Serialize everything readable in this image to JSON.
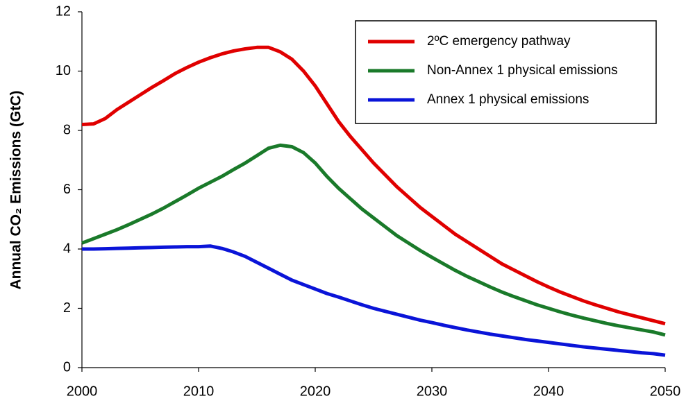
{
  "chart_data": {
    "type": "line",
    "ylabel": "Annual CO₂ Emissions (GtC)",
    "x": [
      2000,
      2001,
      2002,
      2003,
      2004,
      2005,
      2006,
      2007,
      2008,
      2009,
      2010,
      2011,
      2012,
      2013,
      2014,
      2015,
      2016,
      2017,
      2018,
      2019,
      2020,
      2021,
      2022,
      2023,
      2024,
      2025,
      2026,
      2027,
      2028,
      2029,
      2030,
      2031,
      2032,
      2033,
      2034,
      2035,
      2036,
      2037,
      2038,
      2039,
      2040,
      2041,
      2042,
      2043,
      2044,
      2045,
      2046,
      2047,
      2048,
      2049,
      2050
    ],
    "series": [
      {
        "name": "2ºC emergency pathway",
        "color": "#e00000",
        "values": [
          8.2,
          8.22,
          8.4,
          8.7,
          8.95,
          9.2,
          9.45,
          9.68,
          9.92,
          10.12,
          10.3,
          10.45,
          10.58,
          10.68,
          10.75,
          10.8,
          10.8,
          10.65,
          10.4,
          10.0,
          9.5,
          8.9,
          8.3,
          7.8,
          7.35,
          6.9,
          6.5,
          6.1,
          5.75,
          5.4,
          5.1,
          4.8,
          4.5,
          4.25,
          4.0,
          3.75,
          3.5,
          3.3,
          3.1,
          2.9,
          2.72,
          2.55,
          2.4,
          2.25,
          2.12,
          2.0,
          1.88,
          1.78,
          1.68,
          1.58,
          1.48
        ]
      },
      {
        "name": "Non-Annex 1 physical emissions",
        "color": "#1a7a2a",
        "values": [
          4.2,
          4.35,
          4.5,
          4.65,
          4.82,
          5.0,
          5.18,
          5.38,
          5.6,
          5.82,
          6.05,
          6.25,
          6.45,
          6.68,
          6.9,
          7.15,
          7.4,
          7.5,
          7.45,
          7.25,
          6.9,
          6.45,
          6.05,
          5.7,
          5.35,
          5.05,
          4.75,
          4.45,
          4.2,
          3.95,
          3.72,
          3.5,
          3.28,
          3.08,
          2.9,
          2.72,
          2.55,
          2.4,
          2.26,
          2.12,
          2.0,
          1.88,
          1.77,
          1.67,
          1.58,
          1.49,
          1.41,
          1.34,
          1.27,
          1.2,
          1.1
        ]
      },
      {
        "name": "Annex 1 physical emissions",
        "color": "#0a14d8",
        "values": [
          4.0,
          4.0,
          4.01,
          4.02,
          4.03,
          4.04,
          4.05,
          4.06,
          4.07,
          4.08,
          4.08,
          4.1,
          4.02,
          3.9,
          3.75,
          3.55,
          3.35,
          3.15,
          2.95,
          2.8,
          2.65,
          2.5,
          2.38,
          2.25,
          2.12,
          2.0,
          1.9,
          1.8,
          1.7,
          1.6,
          1.52,
          1.43,
          1.35,
          1.27,
          1.2,
          1.13,
          1.07,
          1.01,
          0.95,
          0.9,
          0.85,
          0.8,
          0.75,
          0.7,
          0.66,
          0.62,
          0.58,
          0.54,
          0.5,
          0.47,
          0.42
        ]
      }
    ],
    "xlim": [
      2000,
      2050
    ],
    "xticks": [
      2000,
      2010,
      2020,
      2030,
      2040,
      2050
    ],
    "ylim": [
      0,
      12
    ],
    "yticks": [
      0,
      2,
      4,
      6,
      8,
      10,
      12
    ],
    "grid": false,
    "legend": "upper right"
  }
}
